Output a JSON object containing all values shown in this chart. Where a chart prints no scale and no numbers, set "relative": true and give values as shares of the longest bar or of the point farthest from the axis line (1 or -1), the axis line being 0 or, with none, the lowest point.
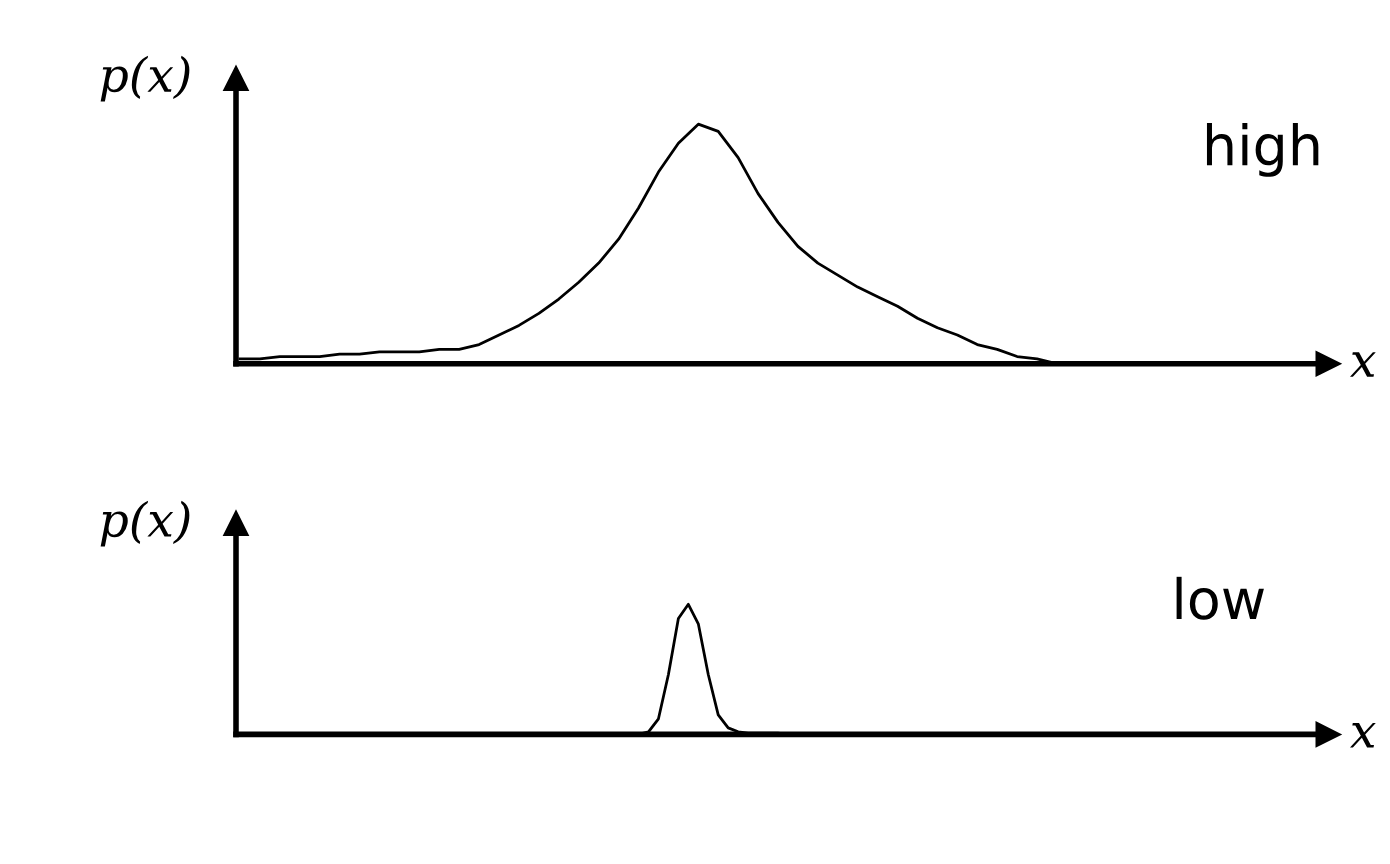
{
  "chart_data": [
    {
      "type": "line",
      "relative": true,
      "ylabel": "p(x)",
      "xlabel": "x",
      "annotations": [
        "high"
      ],
      "categories": [
        null,
        null,
        null,
        null,
        null,
        null,
        null,
        null,
        null,
        null,
        null,
        null,
        null,
        null,
        null,
        null,
        null,
        null,
        null,
        null,
        null,
        null,
        null,
        null,
        null,
        null,
        null,
        null,
        null,
        null,
        null,
        null,
        null,
        null,
        null,
        null,
        null,
        null,
        null,
        null,
        null,
        null,
        null,
        null,
        null,
        null,
        null,
        null,
        null,
        null,
        null,
        null,
        null,
        null,
        null
      ],
      "series": [
        {
          "color": "#000000",
          "values": [
            0.02,
            0.02,
            0.03,
            0.03,
            0.03,
            0.04,
            0.04,
            0.05,
            0.05,
            0.05,
            0.06,
            0.06,
            0.08,
            0.12,
            0.16,
            0.21,
            0.27,
            0.34,
            0.42,
            0.52,
            0.65,
            0.8,
            0.92,
            1,
            0.97,
            0.86,
            0.71,
            0.59,
            0.49,
            0.42,
            0.37,
            0.32,
            0.28,
            0.24,
            0.19,
            0.15,
            0.12,
            0.08,
            0.06,
            0.03,
            0.02,
            0,
            null,
            null,
            null,
            null,
            null,
            null,
            null,
            null,
            null,
            null,
            null,
            null,
            null
          ]
        }
      ],
      "marker": "none",
      "line_style": "solid"
    },
    {
      "type": "line",
      "relative": true,
      "ylabel": "p(x)",
      "xlabel": "x",
      "annotations": [
        "low"
      ],
      "categories": [
        null,
        null,
        null,
        null,
        null,
        null,
        null,
        null,
        null,
        null,
        null,
        null,
        null,
        null,
        null,
        null,
        null,
        null,
        null,
        null,
        null,
        null,
        null,
        null,
        null,
        null,
        null,
        null,
        null,
        null,
        null,
        null,
        null,
        null,
        null,
        null,
        null,
        null,
        null,
        null,
        null,
        null,
        null,
        null,
        null,
        null,
        null,
        null,
        null,
        null,
        null,
        null,
        null,
        null,
        null,
        null,
        null,
        null,
        null,
        null,
        null,
        null,
        null,
        null,
        null,
        null,
        null,
        null,
        null,
        null,
        null,
        null,
        null,
        null,
        null,
        null,
        null,
        null,
        null,
        null,
        null,
        null,
        null,
        null,
        null,
        null,
        null,
        null,
        null,
        null,
        null,
        null,
        null,
        null,
        null,
        null,
        null,
        null,
        null,
        null,
        null,
        null,
        null,
        null,
        null,
        null,
        null,
        null,
        null
      ],
      "series": [
        {
          "color": "#000000",
          "values": [
            null,
            null,
            null,
            null,
            null,
            null,
            null,
            null,
            null,
            null,
            null,
            null,
            null,
            null,
            null,
            null,
            null,
            null,
            null,
            null,
            null,
            null,
            null,
            null,
            null,
            null,
            null,
            null,
            null,
            null,
            null,
            null,
            null,
            null,
            null,
            null,
            0,
            0,
            0,
            0,
            0,
            0.02,
            0.12,
            0.46,
            0.89,
            1,
            0.85,
            0.46,
            0.15,
            0.05,
            0.02,
            0.01,
            0.01,
            0.01,
            0.01,
            0,
            null,
            null,
            null,
            null,
            null,
            null,
            null,
            null,
            null,
            null,
            null,
            null,
            null,
            null,
            null,
            null,
            null,
            null,
            null,
            null,
            null,
            null,
            null,
            null,
            null,
            null,
            null,
            null,
            null,
            null,
            null,
            null,
            null,
            null,
            null,
            null,
            null,
            null,
            null,
            null,
            null,
            null,
            null,
            null,
            null,
            null,
            null,
            null,
            null,
            null,
            null,
            null,
            null
          ]
        }
      ],
      "marker": "none",
      "line_style": "solid"
    }
  ]
}
